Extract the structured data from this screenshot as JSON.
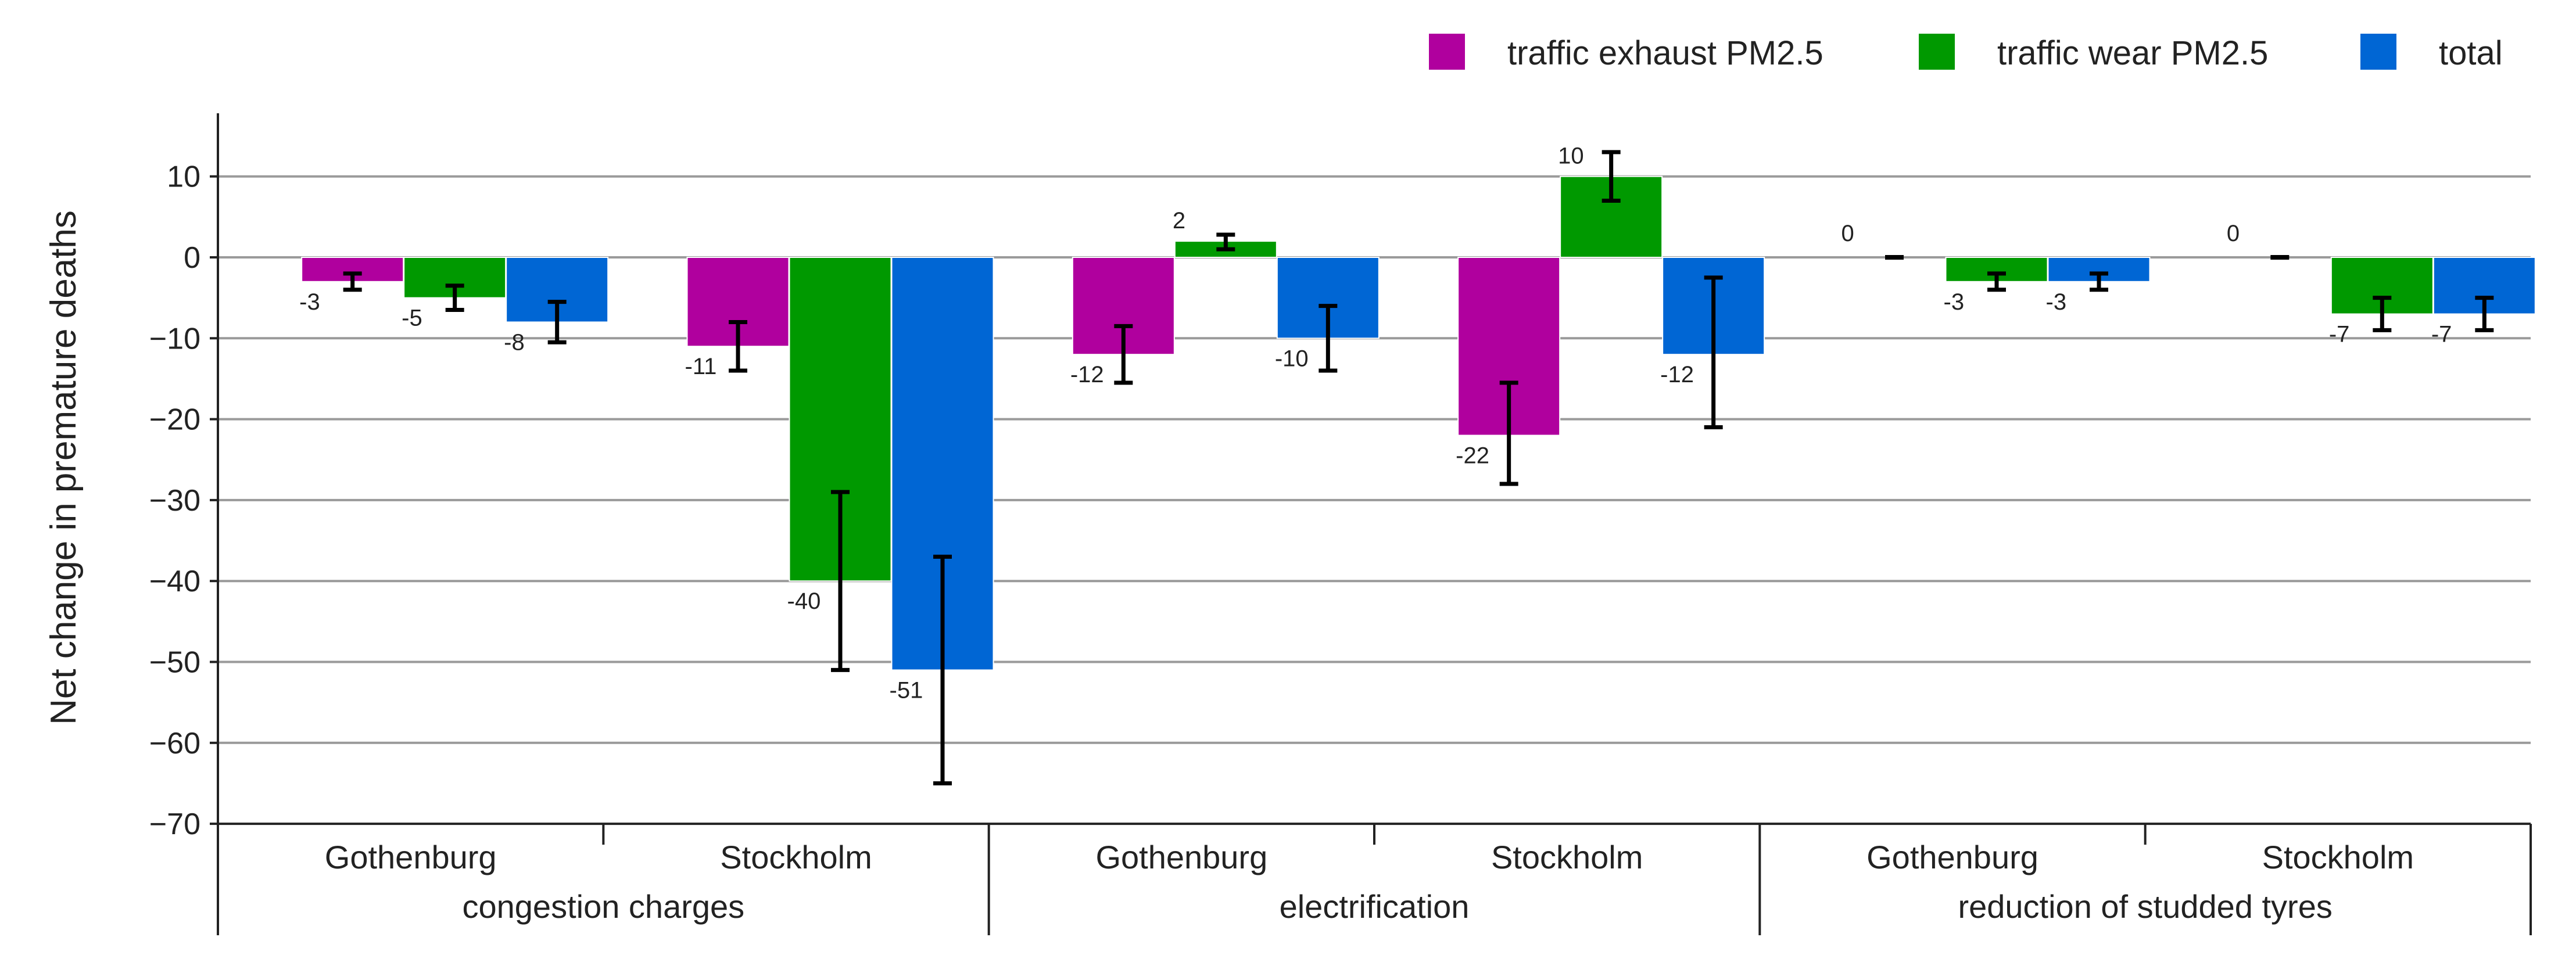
{
  "chart_data": {
    "type": "bar",
    "ylabel": "Net change in premature deaths",
    "ylim": [
      -70,
      18
    ],
    "yticks": [
      10,
      0,
      -10,
      -20,
      -30,
      -40,
      -50,
      -60,
      -70
    ],
    "ytick_labels": [
      "10",
      "0",
      "−10",
      "−20",
      "−30",
      "−40",
      "−50",
      "−60",
      "−70"
    ],
    "grid": true,
    "legend_position": "top-right",
    "series": [
      {
        "name": "traffic exhaust PM2.5",
        "color": "#b0009e"
      },
      {
        "name": "traffic wear PM2.5",
        "color": "#009900"
      },
      {
        "name": "total",
        "color": "#0066d4"
      }
    ],
    "groups": [
      {
        "label": "congestion charges",
        "cities": [
          {
            "label": "Gothenburg",
            "values": [
              -3,
              -5,
              -8
            ],
            "value_labels": [
              "-3",
              "-5",
              "-8"
            ],
            "error_low": [
              -4,
              -6.5,
              -10.5
            ],
            "error_high": [
              -2,
              -3.5,
              -5.5
            ]
          },
          {
            "label": "Stockholm",
            "values": [
              -11,
              -40,
              -51
            ],
            "value_labels": [
              "-11",
              "-40",
              "-51"
            ],
            "error_low": [
              -14,
              -51,
              -65
            ],
            "error_high": [
              -8,
              -29,
              -37
            ]
          }
        ]
      },
      {
        "label": "electrification",
        "cities": [
          {
            "label": "Gothenburg",
            "values": [
              -12,
              2,
              -10
            ],
            "value_labels": [
              "-12",
              "2",
              "-10"
            ],
            "error_low": [
              -15.5,
              1,
              -14
            ],
            "error_high": [
              -8.5,
              2.8,
              -6
            ]
          },
          {
            "label": "Stockholm",
            "values": [
              -22,
              10,
              -12
            ],
            "value_labels": [
              "-22",
              "10",
              "-12"
            ],
            "error_low": [
              -28,
              7,
              -21
            ],
            "error_high": [
              -15.5,
              13,
              -2.5
            ]
          }
        ]
      },
      {
        "label": "reduction of studded tyres",
        "cities": [
          {
            "label": "Gothenburg",
            "values": [
              0,
              -3,
              -3
            ],
            "value_labels": [
              "0",
              "-3",
              "-3"
            ],
            "error_low": [
              0,
              -4,
              -4
            ],
            "error_high": [
              0,
              -2,
              -2
            ]
          },
          {
            "label": "Stockholm",
            "values": [
              0,
              -7,
              -7
            ],
            "value_labels": [
              "0",
              "-7",
              "-7"
            ],
            "error_low": [
              0,
              -9,
              -9
            ],
            "error_high": [
              0,
              -5,
              -5
            ]
          }
        ]
      }
    ]
  }
}
